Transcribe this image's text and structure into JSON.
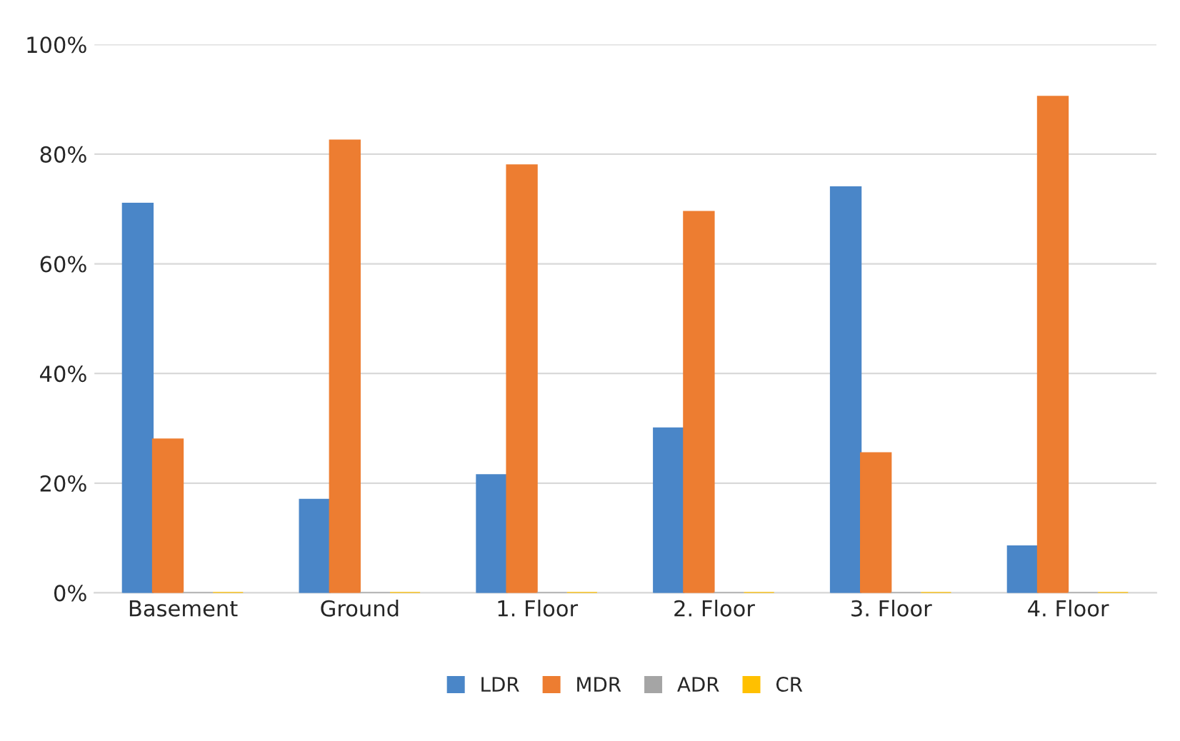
{
  "chart_data": {
    "type": "bar",
    "categories": [
      "Basement",
      "Ground",
      "1. Floor",
      "2. Floor",
      "3. Floor",
      "4. Floor"
    ],
    "series": [
      {
        "name": "LDR",
        "color": "#4a86c8",
        "values": [
          71,
          17,
          21.5,
          30,
          74,
          8.5
        ]
      },
      {
        "name": "MDR",
        "color": "#ed7d31",
        "values": [
          28,
          82.5,
          78,
          69.5,
          25.5,
          90.5
        ]
      },
      {
        "name": "ADR",
        "color": "#a5a5a5",
        "values": [
          0,
          0,
          0,
          0,
          0,
          0
        ]
      },
      {
        "name": "CR",
        "color": "#ffc000",
        "values": [
          0,
          0,
          0,
          0,
          0,
          0
        ]
      }
    ],
    "ylim": [
      0,
      100
    ],
    "yticks": [
      {
        "value": 0,
        "label": "0%"
      },
      {
        "value": 20,
        "label": "20%"
      },
      {
        "value": 40,
        "label": "40%"
      },
      {
        "value": 60,
        "label": "60%"
      },
      {
        "value": 80,
        "label": "80%"
      },
      {
        "value": 100,
        "label": "100%"
      }
    ],
    "grid": "y",
    "legend": "bottom"
  }
}
